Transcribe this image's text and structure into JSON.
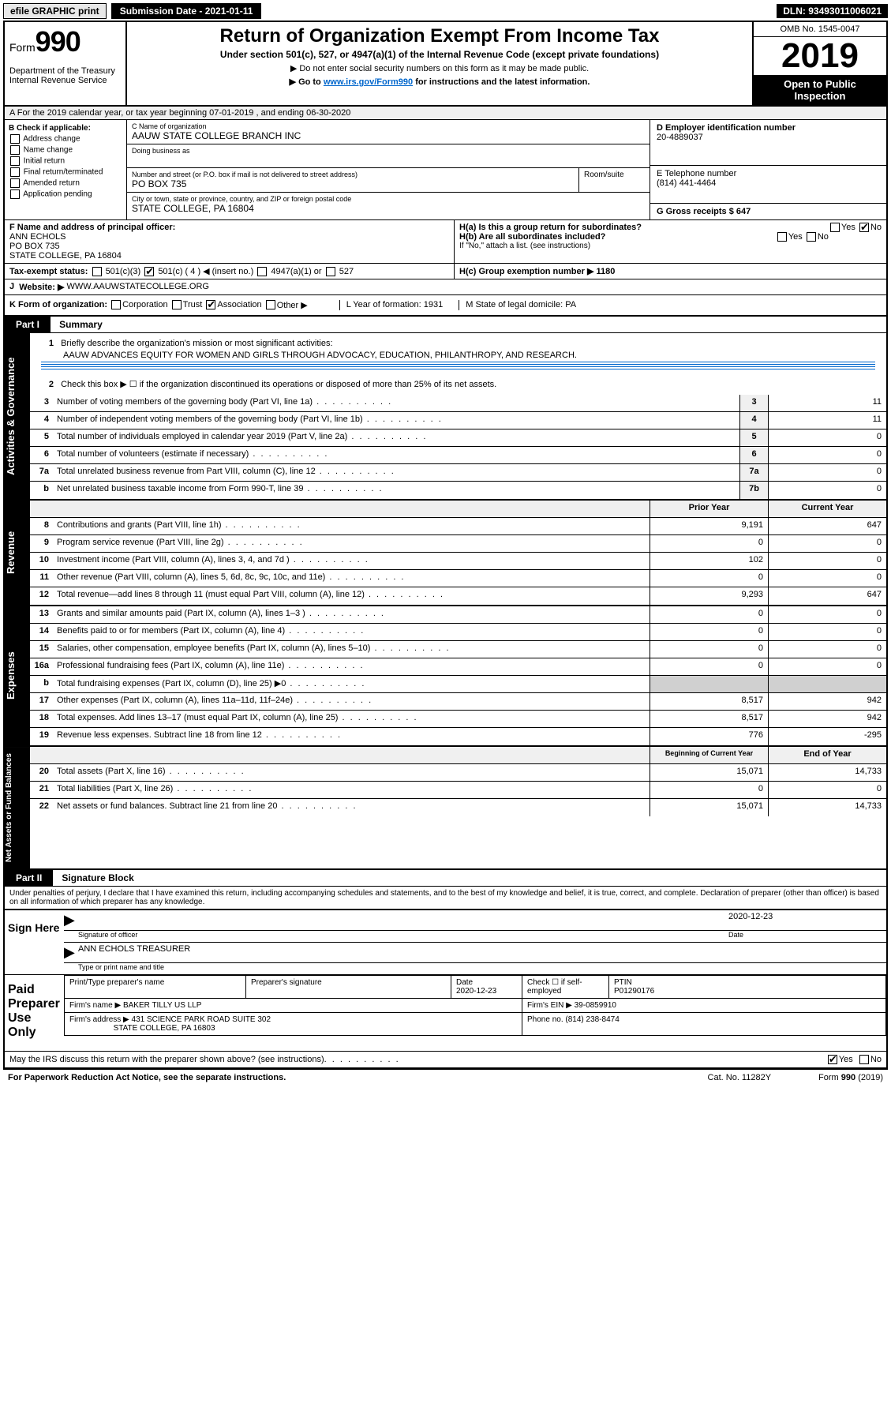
{
  "topbar": {
    "efile": "efile GRAPHIC print",
    "sub_label": "Submission Date - 2021-01-11",
    "dln": "DLN: 93493011006021"
  },
  "header": {
    "form": "Form",
    "form_no": "990",
    "dept": "Department of the Treasury\nInternal Revenue Service",
    "title": "Return of Organization Exempt From Income Tax",
    "subtitle": "Under section 501(c), 527, or 4947(a)(1) of the Internal Revenue Code (except private foundations)",
    "sub2": "▶ Do not enter social security numbers on this form as it may be made public.",
    "sub3_pre": "▶ Go to ",
    "sub3_link": "www.irs.gov/Form990",
    "sub3_post": " for instructions and the latest information.",
    "omb": "OMB No. 1545-0047",
    "year": "2019",
    "open_pub": "Open to Public Inspection"
  },
  "a_row": "A For the 2019 calendar year, or tax year beginning 07-01-2019    , and ending 06-30-2020",
  "b": {
    "label": "B Check if applicable:",
    "opts": [
      "Address change",
      "Name change",
      "Initial return",
      "Final return/terminated",
      "Amended return",
      "Application pending"
    ]
  },
  "c": {
    "name_lbl": "C Name of organization",
    "name": "AAUW STATE COLLEGE BRANCH INC",
    "dba_lbl": "Doing business as",
    "addr_lbl": "Number and street (or P.O. box if mail is not delivered to street address)",
    "room_lbl": "Room/suite",
    "addr": "PO BOX 735",
    "city_lbl": "City or town, state or province, country, and ZIP or foreign postal code",
    "city": "STATE COLLEGE, PA  16804"
  },
  "d": {
    "lbl": "D Employer identification number",
    "val": "20-4889037"
  },
  "e": {
    "lbl": "E Telephone number",
    "val": "(814) 441-4464"
  },
  "g": {
    "lbl": "G Gross receipts $ 647"
  },
  "f": {
    "lbl": "F  Name and address of principal officer:",
    "name": "ANN ECHOLS",
    "addr1": "PO BOX 735",
    "addr2": "STATE COLLEGE, PA  16804"
  },
  "h": {
    "a": "H(a)  Is this a group return for subordinates?",
    "b": "H(b)  Are all subordinates included?",
    "note": "If \"No,\" attach a list. (see instructions)",
    "c": "H(c)  Group exemption number ▶   1180",
    "yes": "Yes",
    "no": "No"
  },
  "i": {
    "lbl": "Tax-exempt status:",
    "o1": "501(c)(3)",
    "o2": "501(c) ( 4 ) ◀ (insert no.)",
    "o3": "4947(a)(1) or",
    "o4": "527"
  },
  "j": {
    "lbl": "J",
    "website_lbl": "Website: ▶",
    "website": "WWW.AAUWSTATECOLLEGE.ORG"
  },
  "k": {
    "lbl": "K Form of organization:",
    "o1": "Corporation",
    "o2": "Trust",
    "o3": "Association",
    "o4": "Other ▶",
    "l": "L Year of formation: 1931",
    "m": "M State of legal domicile: PA"
  },
  "part1": {
    "hdr": "Part I",
    "title": "Summary"
  },
  "summary": {
    "q1": "Briefly describe the organization's mission or most significant activities:",
    "mission": "AAUW ADVANCES EQUITY FOR WOMEN AND GIRLS THROUGH ADVOCACY, EDUCATION, PHILANTHROPY, AND RESEARCH.",
    "q2": "Check this box ▶ ☐  if the organization discontinued its operations or disposed of more than 25% of its net assets.",
    "lines": [
      {
        "n": "3",
        "t": "Number of voting members of the governing body (Part VI, line 1a)",
        "box": "3",
        "v": "11"
      },
      {
        "n": "4",
        "t": "Number of independent voting members of the governing body (Part VI, line 1b)",
        "box": "4",
        "v": "11"
      },
      {
        "n": "5",
        "t": "Total number of individuals employed in calendar year 2019 (Part V, line 2a)",
        "box": "5",
        "v": "0"
      },
      {
        "n": "6",
        "t": "Total number of volunteers (estimate if necessary)",
        "box": "6",
        "v": "0"
      },
      {
        "n": "7a",
        "t": "Total unrelated business revenue from Part VIII, column (C), line 12",
        "box": "7a",
        "v": "0"
      },
      {
        "n": "b",
        "t": "Net unrelated business taxable income from Form 990-T, line 39",
        "box": "7b",
        "v": "0"
      }
    ],
    "prior_hdr": "Prior Year",
    "curr_hdr": "Current Year",
    "rev": [
      {
        "n": "8",
        "t": "Contributions and grants (Part VIII, line 1h)",
        "p": "9,191",
        "c": "647"
      },
      {
        "n": "9",
        "t": "Program service revenue (Part VIII, line 2g)",
        "p": "0",
        "c": "0"
      },
      {
        "n": "10",
        "t": "Investment income (Part VIII, column (A), lines 3, 4, and 7d )",
        "p": "102",
        "c": "0"
      },
      {
        "n": "11",
        "t": "Other revenue (Part VIII, column (A), lines 5, 6d, 8c, 9c, 10c, and 11e)",
        "p": "0",
        "c": "0"
      },
      {
        "n": "12",
        "t": "Total revenue—add lines 8 through 11 (must equal Part VIII, column (A), line 12)",
        "p": "9,293",
        "c": "647"
      }
    ],
    "exp": [
      {
        "n": "13",
        "t": "Grants and similar amounts paid (Part IX, column (A), lines 1–3 )",
        "p": "0",
        "c": "0"
      },
      {
        "n": "14",
        "t": "Benefits paid to or for members (Part IX, column (A), line 4)",
        "p": "0",
        "c": "0"
      },
      {
        "n": "15",
        "t": "Salaries, other compensation, employee benefits (Part IX, column (A), lines 5–10)",
        "p": "0",
        "c": "0"
      },
      {
        "n": "16a",
        "t": "Professional fundraising fees (Part IX, column (A), line 11e)",
        "p": "0",
        "c": "0"
      },
      {
        "n": "b",
        "t": "Total fundraising expenses (Part IX, column (D), line 25) ▶0",
        "p": "",
        "c": "",
        "grey": true
      },
      {
        "n": "17",
        "t": "Other expenses (Part IX, column (A), lines 11a–11d, 11f–24e)",
        "p": "8,517",
        "c": "942"
      },
      {
        "n": "18",
        "t": "Total expenses. Add lines 13–17 (must equal Part IX, column (A), line 25)",
        "p": "8,517",
        "c": "942"
      },
      {
        "n": "19",
        "t": "Revenue less expenses. Subtract line 18 from line 12",
        "p": "776",
        "c": "-295"
      }
    ],
    "beg_hdr": "Beginning of Current Year",
    "end_hdr": "End of Year",
    "net": [
      {
        "n": "20",
        "t": "Total assets (Part X, line 16)",
        "p": "15,071",
        "c": "14,733"
      },
      {
        "n": "21",
        "t": "Total liabilities (Part X, line 26)",
        "p": "0",
        "c": "0"
      },
      {
        "n": "22",
        "t": "Net assets or fund balances. Subtract line 21 from line 20",
        "p": "15,071",
        "c": "14,733"
      }
    ]
  },
  "sides": {
    "gov": "Activities & Governance",
    "rev": "Revenue",
    "exp": "Expenses",
    "net": "Net Assets or Fund Balances"
  },
  "part2": {
    "hdr": "Part II",
    "title": "Signature Block"
  },
  "perjury": "Under penalties of perjury, I declare that I have examined this return, including accompanying schedules and statements, and to the best of my knowledge and belief, it is true, correct, and complete. Declaration of preparer (other than officer) is based on all information of which preparer has any knowledge.",
  "sign": {
    "here": "Sign Here",
    "date": "2020-12-23",
    "sig_lbl": "Signature of officer",
    "date_lbl": "Date",
    "name": "ANN ECHOLS TREASURER",
    "name_lbl": "Type or print name and title"
  },
  "paid": {
    "title": "Paid Preparer Use Only",
    "h1": "Print/Type preparer's name",
    "h2": "Preparer's signature",
    "h3": "Date",
    "h3v": "2020-12-23",
    "h4": "Check ☐ if self-employed",
    "h5": "PTIN",
    "h5v": "P01290176",
    "firm_lbl": "Firm's name    ▶",
    "firm": "BAKER TILLY US LLP",
    "ein_lbl": "Firm's EIN ▶",
    "ein": "39-0859910",
    "addr_lbl": "Firm's address ▶",
    "addr": "431 SCIENCE PARK ROAD SUITE 302",
    "addr2": "STATE COLLEGE, PA  16803",
    "phone_lbl": "Phone no.",
    "phone": "(814) 238-8474"
  },
  "discuss": "May the IRS discuss this return with the preparer shown above? (see instructions)",
  "footer": {
    "left": "For Paperwork Reduction Act Notice, see the separate instructions.",
    "mid": "Cat. No. 11282Y",
    "right": "Form 990 (2019)"
  }
}
